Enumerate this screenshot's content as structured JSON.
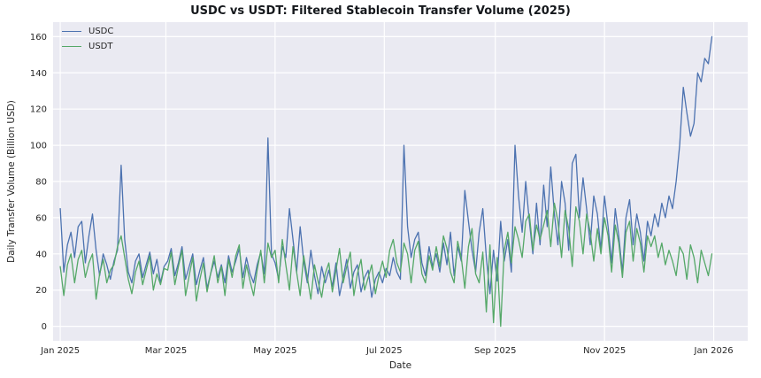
{
  "chart_data": {
    "type": "line",
    "title": "USDC vs USDT: Filtered Stablecoin Transfer Volume (2025)",
    "xlabel": "Date",
    "ylabel": "Daily Transfer Volume (Billion USD)",
    "x_start_date": "2025-01-01",
    "x_step_days": 2,
    "xlim": [
      -4,
      384
    ],
    "ylim": [
      -8,
      168
    ],
    "yticks": [
      0,
      20,
      40,
      60,
      80,
      100,
      120,
      140,
      160
    ],
    "xticks": [
      {
        "day": 0,
        "label": "Jan 2025"
      },
      {
        "day": 59,
        "label": "Mar 2025"
      },
      {
        "day": 120,
        "label": "May 2025"
      },
      {
        "day": 181,
        "label": "Jul 2025"
      },
      {
        "day": 243,
        "label": "Sep 2025"
      },
      {
        "day": 304,
        "label": "Nov 2025"
      },
      {
        "day": 365,
        "label": "Jan 2026"
      }
    ],
    "grid": true,
    "grid_color": "#ffffff",
    "plot_bg": "#eaeaf2",
    "legend_position": "upper-left",
    "series": [
      {
        "name": "USDC",
        "color": "#4c72b0",
        "values": [
          65,
          30,
          45,
          52,
          38,
          55,
          58,
          35,
          50,
          62,
          42,
          28,
          40,
          34,
          26,
          36,
          42,
          89,
          48,
          30,
          24,
          36,
          40,
          27,
          34,
          41,
          29,
          37,
          24,
          33,
          36,
          43,
          28,
          35,
          44,
          26,
          33,
          40,
          23,
          31,
          38,
          21,
          29,
          36,
          27,
          34,
          24,
          39,
          30,
          36,
          43,
          27,
          38,
          29,
          24,
          34,
          41,
          29,
          104,
          40,
          35,
          26,
          44,
          38,
          65,
          48,
          30,
          55,
          36,
          24,
          42,
          28,
          18,
          33,
          24,
          31,
          22,
          35,
          17,
          27,
          37,
          21,
          30,
          34,
          19,
          27,
          31,
          16,
          26,
          30,
          24,
          32,
          28,
          38,
          30,
          26,
          100,
          55,
          38,
          48,
          52,
          35,
          28,
          44,
          33,
          40,
          30,
          46,
          34,
          52,
          28,
          44,
          36,
          75,
          58,
          42,
          30,
          52,
          65,
          38,
          18,
          42,
          25,
          58,
          36,
          48,
          30,
          100,
          72,
          52,
          80,
          58,
          40,
          68,
          45,
          78,
          55,
          88,
          62,
          45,
          80,
          68,
          42,
          90,
          95,
          60,
          82,
          65,
          45,
          72,
          62,
          42,
          72,
          55,
          35,
          65,
          50,
          30,
          60,
          70,
          45,
          62,
          52,
          36,
          58,
          50,
          62,
          55,
          68,
          60,
          72,
          65,
          80,
          100,
          132,
          118,
          105,
          112,
          140,
          135,
          148,
          145,
          160
        ]
      },
      {
        "name": "USDT",
        "color": "#55a868",
        "values": [
          33,
          17,
          34,
          40,
          24,
          37,
          42,
          27,
          35,
          40,
          15,
          29,
          37,
          24,
          31,
          34,
          44,
          50,
          38,
          26,
          18,
          30,
          36,
          23,
          31,
          39,
          20,
          29,
          23,
          32,
          31,
          41,
          23,
          33,
          42,
          17,
          28,
          38,
          14,
          26,
          35,
          19,
          29,
          39,
          24,
          33,
          17,
          37,
          27,
          39,
          45,
          21,
          34,
          25,
          17,
          31,
          42,
          24,
          46,
          38,
          42,
          24,
          48,
          34,
          20,
          44,
          30,
          17,
          39,
          27,
          15,
          34,
          25,
          16,
          29,
          35,
          19,
          31,
          43,
          24,
          33,
          41,
          17,
          29,
          37,
          20,
          27,
          34,
          18,
          28,
          36,
          27,
          42,
          48,
          35,
          30,
          46,
          40,
          24,
          42,
          47,
          29,
          24,
          39,
          31,
          44,
          33,
          50,
          43,
          30,
          24,
          47,
          38,
          21,
          44,
          54,
          29,
          24,
          41,
          8,
          45,
          2,
          38,
          0,
          42,
          52,
          35,
          55,
          48,
          38,
          58,
          62,
          42,
          56,
          48,
          56,
          64,
          44,
          68,
          58,
          38,
          64,
          54,
          33,
          66,
          58,
          40,
          62,
          52,
          36,
          54,
          40,
          60,
          50,
          30,
          56,
          46,
          27,
          52,
          58,
          36,
          54,
          46,
          30,
          50,
          44,
          50,
          38,
          46,
          34,
          42,
          36,
          28,
          44,
          40,
          26,
          45,
          38,
          24,
          42,
          35,
          28,
          40
        ]
      }
    ]
  }
}
